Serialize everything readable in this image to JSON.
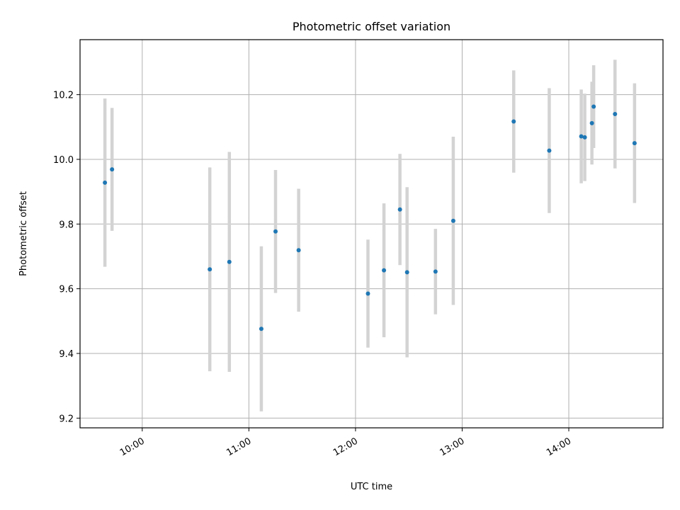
{
  "chart_data": {
    "type": "scatter",
    "title": "Photometric offset variation",
    "xlabel": "UTC time",
    "ylabel": "Photometric offset",
    "x_ticks": [
      "10:00",
      "11:00",
      "12:00",
      "13:00",
      "14:00"
    ],
    "y_ticks": [
      "9.2",
      "9.4",
      "9.6",
      "9.8",
      "10.0",
      "10.2"
    ],
    "xlim": [
      "09:25",
      "14:53"
    ],
    "ylim": [
      9.17,
      10.37
    ],
    "grid": true,
    "colors": {
      "point": "#1f77b4",
      "errorbar": "#d3d3d3"
    },
    "series": [
      {
        "points": [
          {
            "x": "09:39",
            "y": 9.928,
            "err": 0.26
          },
          {
            "x": "09:43",
            "y": 9.969,
            "err": 0.19
          },
          {
            "x": "10:38",
            "y": 9.66,
            "err": 0.315
          },
          {
            "x": "10:49",
            "y": 9.683,
            "err": 0.34
          },
          {
            "x": "11:07",
            "y": 9.476,
            "err": 0.255
          },
          {
            "x": "11:15",
            "y": 9.777,
            "err": 0.19
          },
          {
            "x": "11:28",
            "y": 9.719,
            "err": 0.19
          },
          {
            "x": "12:07",
            "y": 9.585,
            "err": 0.167
          },
          {
            "x": "12:16",
            "y": 9.657,
            "err": 0.207
          },
          {
            "x": "12:25",
            "y": 9.845,
            "err": 0.172
          },
          {
            "x": "12:29",
            "y": 9.651,
            "err": 0.263
          },
          {
            "x": "12:45",
            "y": 9.653,
            "err": 0.132
          },
          {
            "x": "12:55",
            "y": 9.81,
            "err": 0.26
          },
          {
            "x": "13:29",
            "y": 10.117,
            "err": 0.158
          },
          {
            "x": "13:49",
            "y": 10.027,
            "err": 0.193
          },
          {
            "x": "14:07",
            "y": 10.071,
            "err": 0.145
          },
          {
            "x": "14:09",
            "y": 10.068,
            "err": 0.135
          },
          {
            "x": "14:13",
            "y": 10.112,
            "err": 0.128
          },
          {
            "x": "14:14",
            "y": 10.163,
            "err": 0.128
          },
          {
            "x": "14:26",
            "y": 10.14,
            "err": 0.168
          },
          {
            "x": "14:37",
            "y": 10.05,
            "err": 0.185
          }
        ]
      }
    ]
  }
}
